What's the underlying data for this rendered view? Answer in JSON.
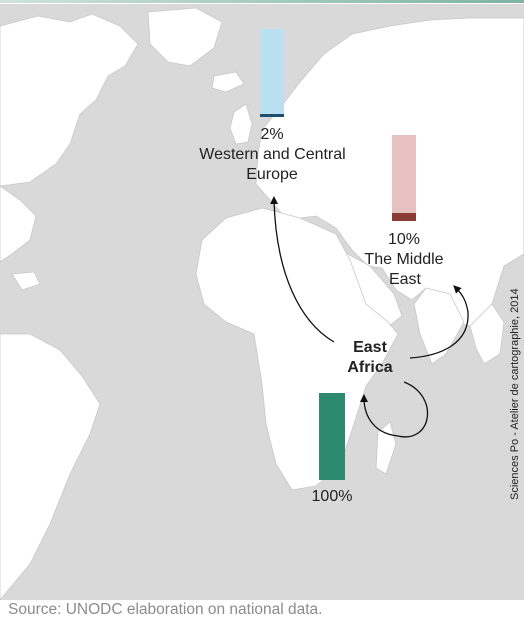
{
  "map": {
    "destinations": [
      {
        "id": "europe",
        "percent": "2%",
        "region_line1": "Western and Central",
        "region_line2": "Europe",
        "color": "#b9dff0",
        "dark": "#1f4e70",
        "value": 2
      },
      {
        "id": "middle-east",
        "percent": "10%",
        "region_line1": "The Middle",
        "region_line2": "East",
        "color": "#e7c1c1",
        "dark": "#8a3b35",
        "value": 10
      }
    ],
    "origin": {
      "line1": "East",
      "line2": "Africa",
      "percent": "100%",
      "color": "#2e8a6f",
      "value": 100
    }
  },
  "source": "Source: UNODC elaboration on national data.",
  "credit": "Sciences Po - Atelier de cartographie, 2014",
  "colors": {
    "land": "#ffffff",
    "sea": "#d9d9d9",
    "arrow": "#111111"
  }
}
